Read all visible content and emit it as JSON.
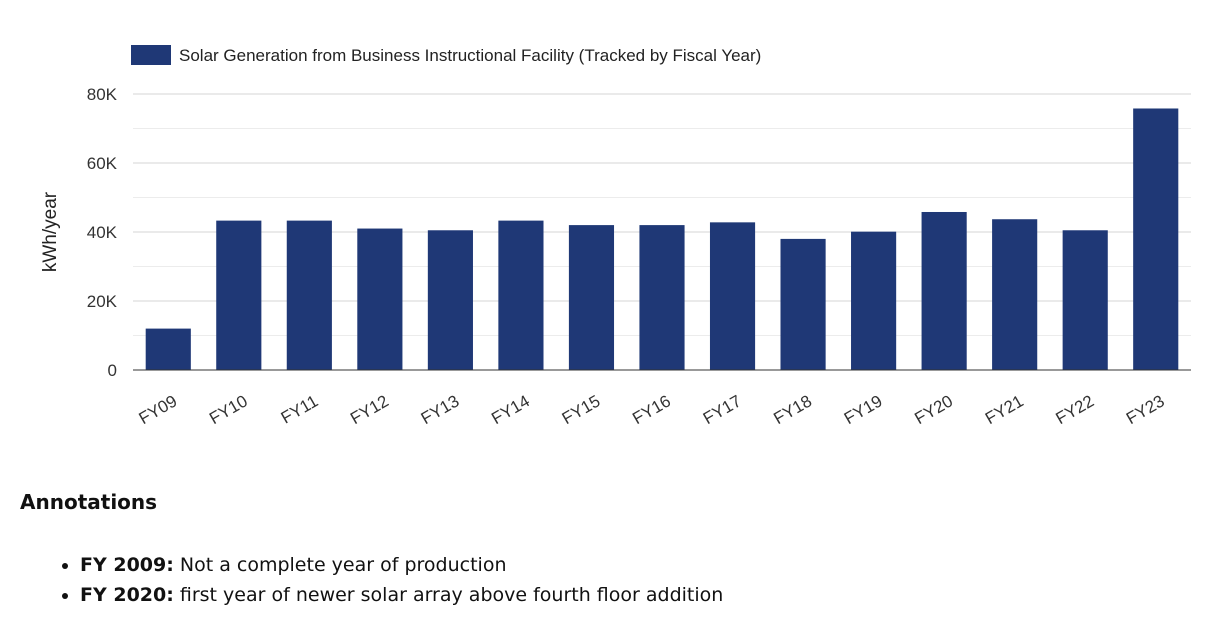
{
  "chart_data": {
    "type": "bar",
    "categories": [
      "FY09",
      "FY10",
      "FY11",
      "FY12",
      "FY13",
      "FY14",
      "FY15",
      "FY16",
      "FY17",
      "FY18",
      "FY19",
      "FY20",
      "FY21",
      "FY22",
      "FY23"
    ],
    "series": [
      {
        "name": "Solar Generation from Business Instructional Facility (Tracked by Fiscal Year)",
        "values": [
          12000,
          43300,
          43300,
          41000,
          40500,
          43300,
          42000,
          42000,
          42800,
          38000,
          40100,
          45800,
          43700,
          40500,
          75800
        ]
      }
    ],
    "xlabel": "",
    "ylabel": "kWh/year",
    "ylim": [
      0,
      80000
    ],
    "yticks": [
      0,
      20000,
      40000,
      60000,
      80000
    ],
    "ytick_labels": [
      "0",
      "20K",
      "40K",
      "60K",
      "80K"
    ],
    "grid": true,
    "legend": "top-left",
    "bar_color": "#1f3876"
  },
  "annotations": {
    "title": "Annotations",
    "items": [
      {
        "label": "FY 2009:",
        "text": " Not a complete year of production"
      },
      {
        "label": "FY 2020:",
        "text": " first year of newer solar array above fourth floor addition"
      }
    ]
  }
}
